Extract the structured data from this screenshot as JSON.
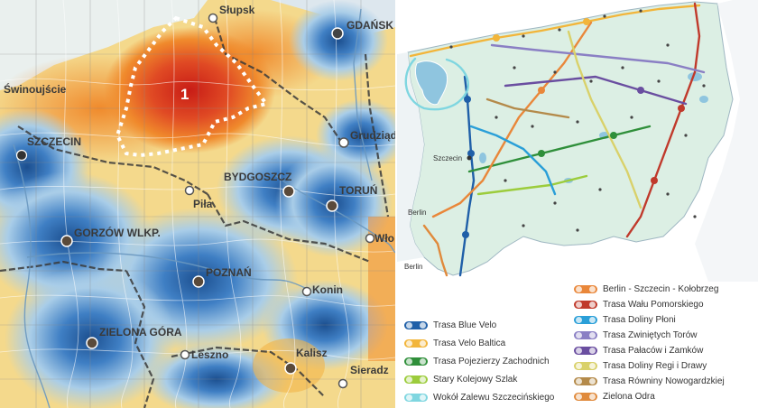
{
  "left_map": {
    "region_number": "1",
    "cities": [
      {
        "name": "Słupsk",
        "id": "slupsk"
      },
      {
        "name": "GDAŃSK",
        "id": "gdansk"
      },
      {
        "name": "Świnoujście",
        "id": "swinoujscie"
      },
      {
        "name": "SZCZECIN",
        "id": "szczecin"
      },
      {
        "name": "Grudziądz",
        "id": "grudziadz"
      },
      {
        "name": "BYDGOSZCZ",
        "id": "bydgoszcz"
      },
      {
        "name": "TORUŃ",
        "id": "torun"
      },
      {
        "name": "Piła",
        "id": "pila"
      },
      {
        "name": "GORZÓW WLKP.",
        "id": "gorzow"
      },
      {
        "name": "Wło",
        "id": "wloclawek"
      },
      {
        "name": "POZNAŃ",
        "id": "poznan"
      },
      {
        "name": "Konin",
        "id": "konin"
      },
      {
        "name": "ZIELONA GÓRA",
        "id": "zielona-gora"
      },
      {
        "name": "Leszno",
        "id": "leszno"
      },
      {
        "name": "Kalisz",
        "id": "kalisz"
      },
      {
        "name": "Sieradz",
        "id": "sieradz"
      }
    ],
    "colors": {
      "red": "#d7261e",
      "orange": "#f08a2c",
      "yellow": "#f6d46e",
      "light_blue": "#a9cde8",
      "blue": "#3f7fc4",
      "dark_blue": "#1c4f8f"
    }
  },
  "right_map": {
    "place_labels": [
      {
        "name": "Szczecin",
        "id": "szczecin"
      },
      {
        "name": "Berlin",
        "id": "berlin-1"
      },
      {
        "name": "Berlin",
        "id": "berlin-2"
      }
    ],
    "legend_left": [
      {
        "label": "Trasa Blue Velo",
        "color": "#1f5fa8"
      },
      {
        "label": "Trasa Velo Baltica",
        "color": "#f2b53a"
      },
      {
        "label": "Trasa Pojezierzy Zachodnich",
        "color": "#2f8f3a"
      },
      {
        "label": "Stary Kolejowy Szlak",
        "color": "#9ccc3c"
      },
      {
        "label": "Wokół Zalewu Szczecińskiego",
        "color": "#7fd6e0"
      }
    ],
    "legend_right": [
      {
        "label": "Berlin - Szczecin - Kołobrzeg",
        "color": "#e9873a"
      },
      {
        "label": "Trasa Wału Pomorskiego",
        "color": "#c0392b"
      },
      {
        "label": "Trasa Doliny Płoni",
        "color": "#2a9fd8"
      },
      {
        "label": "Trasa Zwiniętych Torów",
        "color": "#8a7fc4"
      },
      {
        "label": "Trasa Pałaców i Zamków",
        "color": "#6a4ea0"
      },
      {
        "label": "Trasa Doliny Regi i Drawy",
        "color": "#d9d16a"
      },
      {
        "label": "Trasa Równiny Nowogardzkiej",
        "color": "#b48a4a"
      },
      {
        "label": "Zielona Odra",
        "color": "#e08a3c"
      }
    ]
  }
}
